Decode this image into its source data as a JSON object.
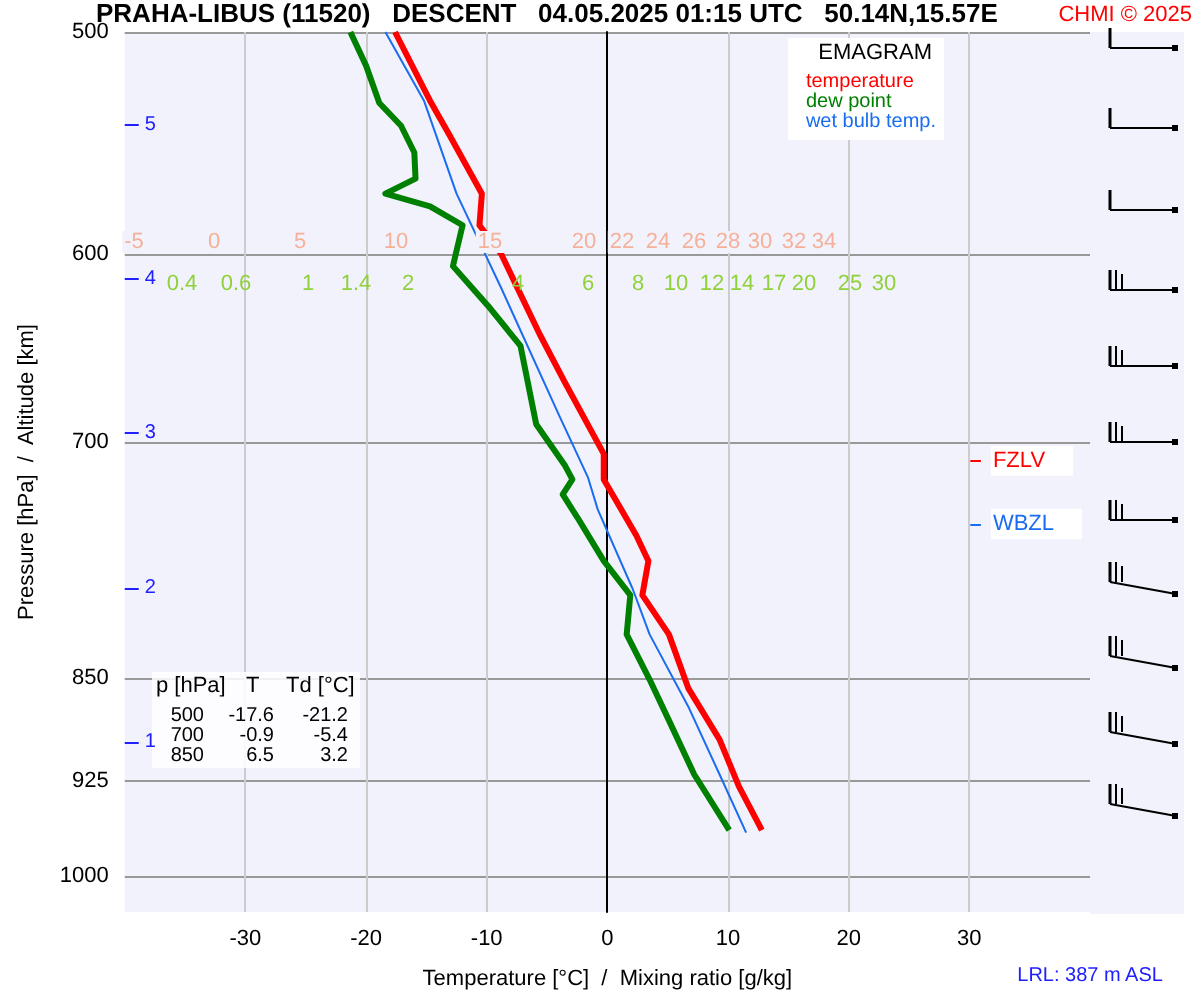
{
  "chart_data": {
    "type": "line",
    "title": "PRAHA-LIBUS (11520)   DESCENT   04.05.2025 01:15 UTC   50.14N,15.57E",
    "legend_title": "EMAGRAM",
    "xlabel": "Temperature [°C]  /  Mixing ratio [g/kg]",
    "ylabel": "Pressure [hPa]  /  Altitude [km]",
    "xlim": [
      -40,
      40
    ],
    "xticks": [
      -30,
      -20,
      -10,
      0,
      10,
      20,
      30
    ],
    "ylim": [
      1030,
      500
    ],
    "yticks": [
      500,
      600,
      700,
      850,
      925,
      1000
    ],
    "y2lim": [
      -0.1,
      5.6
    ],
    "y2ticks": [
      1,
      2,
      3,
      4,
      5
    ],
    "log": "y",
    "grid": true,
    "legend": "top right",
    "marker": "none",
    "line_style": "solid",
    "series": [
      {
        "name": "temperature",
        "color": "#ff0000",
        "x": [
          -17.6,
          -14.7,
          -13.1,
          -10.4,
          -10.6,
          -8.8,
          -5.6,
          -3.5,
          -0.3,
          -0.3,
          2.4,
          3.4,
          2.9,
          5.1,
          6.7,
          9.3,
          10.9,
          12.8
        ],
        "values": [
          500,
          529,
          544,
          571,
          586,
          600,
          641,
          667,
          707,
          722,
          756,
          772,
          794,
          820,
          857,
          894,
          929,
          963
        ]
      },
      {
        "name": "dew point",
        "color": "#008000",
        "x": [
          -21.3,
          -20.0,
          -18.9,
          -17.1,
          -16.0,
          -15.9,
          -18.4,
          -14.7,
          -12.0,
          -12.8,
          -9.9,
          -7.2,
          -5.9,
          -3.5,
          -2.9,
          -3.7,
          -2.4,
          -0.3,
          1.9,
          1.6,
          3.5,
          5.1,
          7.2,
          10.1
        ],
        "values": [
          500,
          514,
          530,
          540,
          552,
          564,
          571,
          577,
          586,
          606,
          626,
          647,
          690,
          714,
          722,
          731,
          746,
          772,
          794,
          820,
          851,
          880,
          920,
          963
        ]
      },
      {
        "name": "wet bulb temp.",
        "color": "#1a6cf0",
        "x": [
          -18.4,
          -15.2,
          -12.5,
          -8.8,
          -4.0,
          -1.6,
          -0.8,
          2.1,
          3.5,
          6.7,
          9.3,
          11.5
        ],
        "values": [
          500,
          529,
          571,
          617,
          685,
          721,
          740,
          790,
          820,
          870,
          920,
          965
        ]
      }
    ],
    "ref_lines": [
      {
        "axis": "y",
        "value": 711,
        "label": "FZLV",
        "color": "#ff0000"
      },
      {
        "axis": "y",
        "value": 749,
        "label": "WBZL",
        "color": "#1a6cf0"
      }
    ],
    "annotations": [
      "CHMI © 2025",
      "LRL: 387 m ASL",
      "p [hPa]  T  Td [°C]",
      "500  -17.6  -21.2",
      "700  -0.9  -5.4",
      "850  6.5  3.2",
      "-5",
      "0",
      "5",
      "10",
      "15",
      "20",
      "22",
      "24",
      "26",
      "28",
      "30",
      "32",
      "34",
      "0.4",
      "0.6",
      "1",
      "1.4",
      "2",
      "4",
      "6",
      "8",
      "10",
      "12",
      "14",
      "17",
      "20",
      "25",
      "30"
    ]
  }
}
